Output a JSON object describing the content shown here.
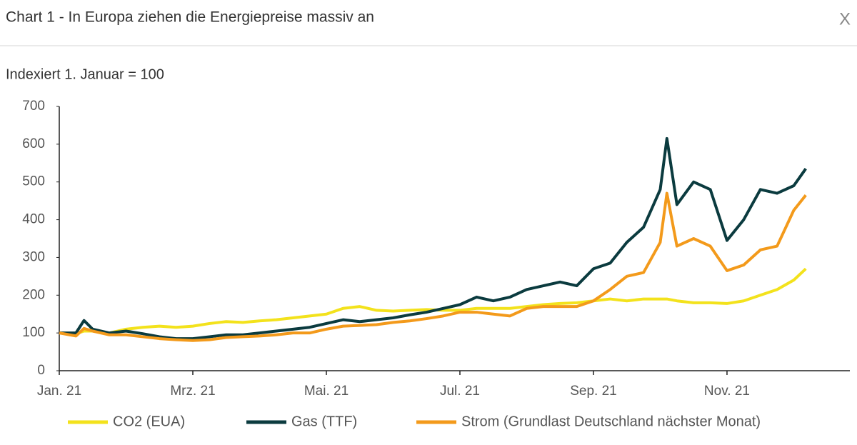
{
  "close_button": "X",
  "chart_data": {
    "type": "line",
    "title": "Chart 1 - In Europa ziehen die Energiepreise massiv an",
    "subtitle": "Indexiert 1. Januar = 100",
    "x": [
      0,
      0.25,
      0.37,
      0.5,
      0.75,
      1.0,
      1.25,
      1.5,
      1.75,
      2.0,
      2.25,
      2.5,
      2.75,
      3.0,
      3.25,
      3.5,
      3.75,
      4.0,
      4.25,
      4.5,
      4.75,
      5.0,
      5.25,
      5.5,
      5.75,
      6.0,
      6.25,
      6.5,
      6.75,
      7.0,
      7.25,
      7.5,
      7.75,
      8.0,
      8.25,
      8.5,
      8.75,
      9.0,
      9.1,
      9.25,
      9.5,
      9.75,
      10.0,
      10.25,
      10.5,
      10.75,
      11.0,
      11.18
    ],
    "xlim": [
      0,
      11.84
    ],
    "xticks": [
      {
        "value": 0,
        "label": "Jan. 21"
      },
      {
        "value": 2,
        "label": "Mrz. 21"
      },
      {
        "value": 4,
        "label": "Mai. 21"
      },
      {
        "value": 6,
        "label": "Jul. 21"
      },
      {
        "value": 8,
        "label": "Sep. 21"
      },
      {
        "value": 10,
        "label": "Nov. 21"
      }
    ],
    "ylim": [
      0,
      700
    ],
    "yticks": [
      0,
      100,
      200,
      300,
      400,
      500,
      600,
      700
    ],
    "series": [
      {
        "name": "CO2 (EUA)",
        "color": "#f3e21c",
        "values": [
          100,
          98,
          105,
          105,
          100,
          110,
          115,
          118,
          115,
          118,
          125,
          130,
          128,
          132,
          135,
          140,
          145,
          150,
          165,
          170,
          160,
          158,
          160,
          162,
          160,
          160,
          165,
          165,
          165,
          170,
          175,
          178,
          180,
          185,
          190,
          185,
          190,
          190,
          190,
          185,
          180,
          180,
          178,
          185,
          200,
          215,
          240,
          270
        ]
      },
      {
        "name": "Gas (TTF)",
        "color": "#0b3b3f",
        "values": [
          100,
          100,
          133,
          110,
          100,
          105,
          98,
          90,
          85,
          85,
          90,
          95,
          95,
          100,
          105,
          110,
          115,
          125,
          135,
          130,
          135,
          140,
          148,
          155,
          165,
          175,
          195,
          185,
          195,
          215,
          225,
          235,
          225,
          270,
          285,
          340,
          380,
          480,
          615,
          440,
          500,
          480,
          345,
          400,
          480,
          470,
          490,
          535
        ]
      },
      {
        "name": "Strom (Grundlast Deutschland nächster Monat)",
        "color": "#f39a1b",
        "values": [
          100,
          92,
          112,
          105,
          95,
          95,
          90,
          85,
          82,
          80,
          82,
          88,
          90,
          92,
          95,
          100,
          100,
          110,
          118,
          120,
          122,
          128,
          132,
          138,
          145,
          155,
          155,
          150,
          145,
          165,
          170,
          170,
          170,
          185,
          215,
          250,
          260,
          340,
          470,
          330,
          350,
          330,
          265,
          280,
          320,
          330,
          425,
          465
        ]
      }
    ]
  }
}
